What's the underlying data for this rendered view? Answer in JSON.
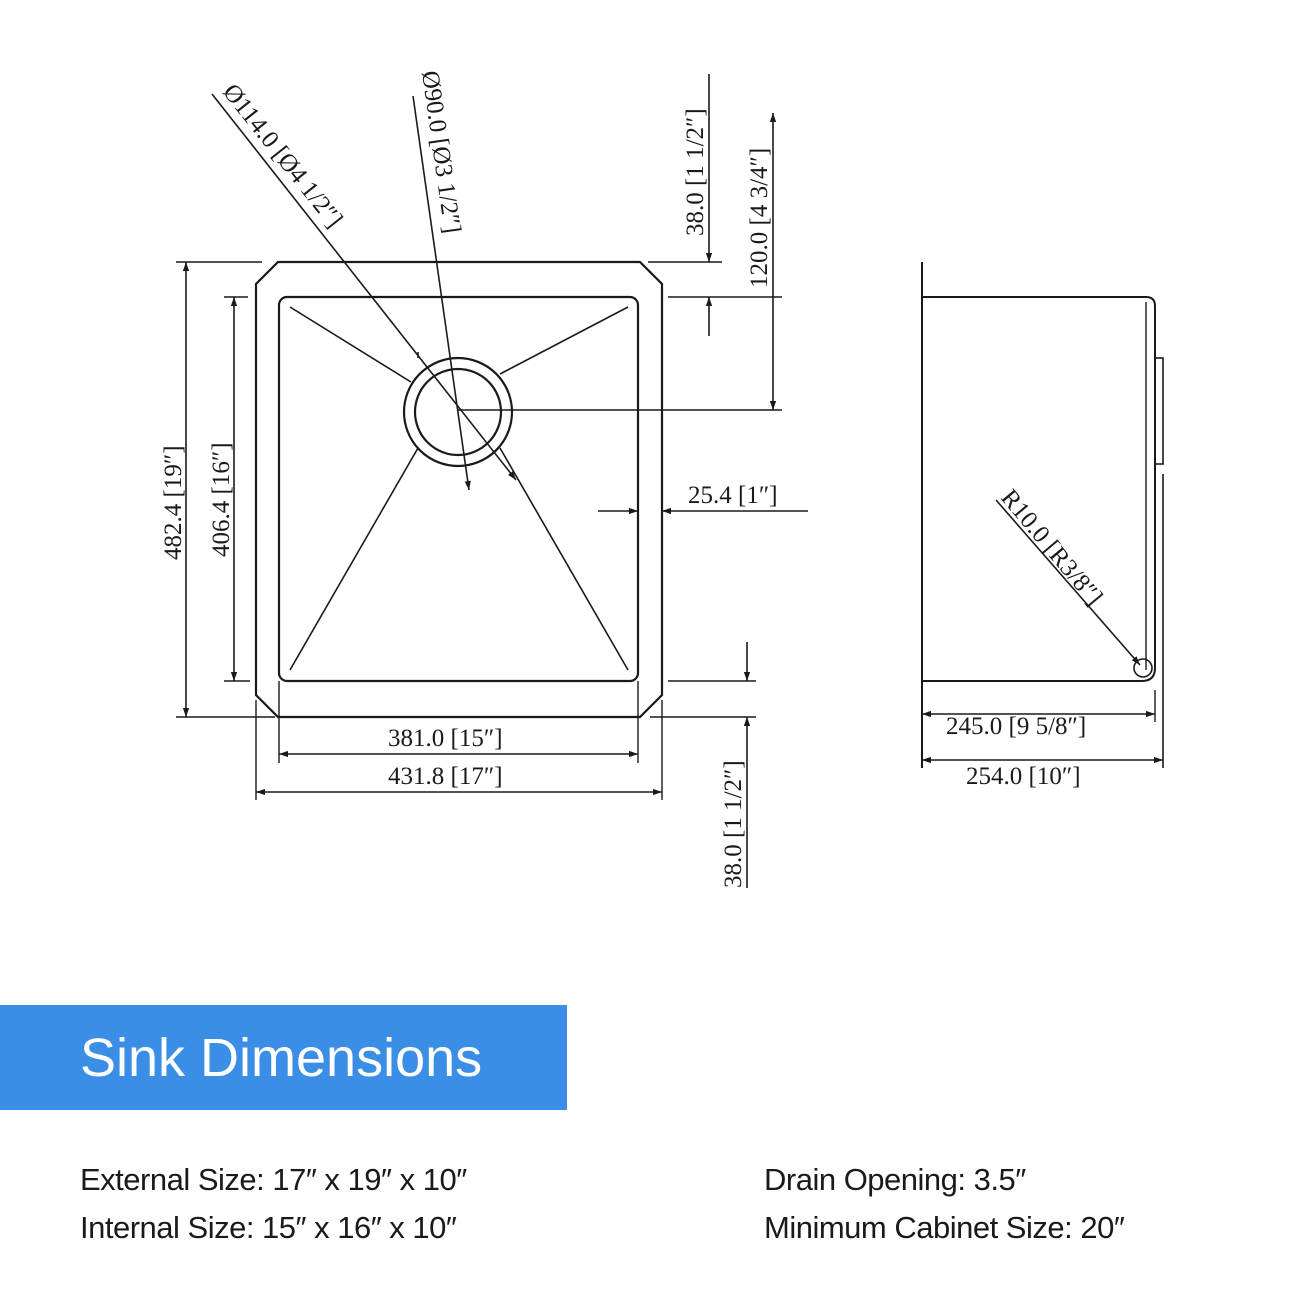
{
  "drawing": {
    "dims": {
      "drain_outer": "Ø114.0 [Ø4 1/2″]",
      "drain_inner": "Ø90.0 [Ø3 1/2″]",
      "rim_top": "38.0 [1 1/2″]",
      "drain_offset": "120.0 [4 3/4″]",
      "outer_height": "482.4 [19″]",
      "inner_height": "406.4 [16″]",
      "side_flange": "25.4 [1″]",
      "inner_width": "381.0 [15″]",
      "outer_width": "431.8 [17″]",
      "rim_bottom": "38.0 [1 1/2″]",
      "corner_radius": "R10.0 [R3/8″]",
      "inner_depth": "245.0 [9 5/8″]",
      "outer_depth": "254.0 [10″]"
    }
  },
  "banner": {
    "title": "Sink Dimensions"
  },
  "specs": {
    "external": "External Size: 17″ x 19″ x 10″",
    "internal": "Internal Size:  15″ x 16″ x 10″",
    "drain": "Drain Opening: 3.5″",
    "cabinet": "Minimum Cabinet Size: 20″"
  }
}
